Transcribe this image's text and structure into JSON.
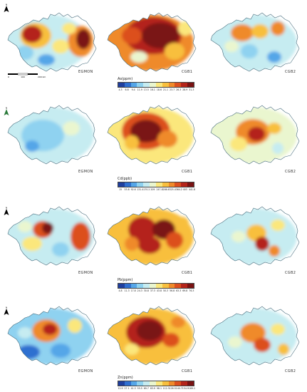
{
  "rows": [
    {
      "element": "As",
      "unit": "ppm",
      "legend_title": "As(ppm)",
      "ticks": [
        "4.3",
        "6.8",
        "9.4",
        "11.9",
        "13.5",
        "16.1",
        "18.6",
        "21.1",
        "23.7",
        "26.3",
        "28.9",
        "31.3"
      ],
      "maps": [
        {
          "label": "EGMON"
        },
        {
          "label": "CGB1"
        },
        {
          "label": "CGB2"
        }
      ]
    },
    {
      "element": "Cd",
      "unit": "ppb",
      "legend_title": "Cd(ppb)",
      "ticks": [
        "15",
        "53.8",
        "92.6",
        "131.4",
        "170.2",
        "209",
        "247.8",
        "286.6",
        "325.4",
        "364.2",
        "403",
        "441.8"
      ],
      "maps": [
        {
          "label": "EGMON"
        },
        {
          "label": "CGB1"
        },
        {
          "label": "CGB2"
        }
      ]
    },
    {
      "element": "Pb",
      "unit": "ppm",
      "legend_title": "Pb(ppm)",
      "ticks": [
        "4.8",
        "11.3",
        "17.8",
        "24.3",
        "30.8",
        "37.3",
        "43.8",
        "50.3",
        "56.8",
        "63.3",
        "69.8",
        "76.3"
      ],
      "maps": [
        {
          "label": "EGMON"
        },
        {
          "label": "CGB1"
        },
        {
          "label": "CGB2"
        }
      ]
    },
    {
      "element": "Zn",
      "unit": "ppm",
      "legend_title": "Zn(ppm)",
      "ticks": [
        "12.9",
        "27.1",
        "41.3",
        "55.5",
        "69.7",
        "83.9",
        "98.1",
        "112.3",
        "126.5",
        "140.7",
        "154.9",
        "169.1"
      ],
      "maps": [
        {
          "label": "EGMON"
        },
        {
          "label": "CGB1"
        },
        {
          "label": "CGB2"
        }
      ]
    }
  ],
  "colors": {
    "ramp": [
      "#1f3f9e",
      "#2f6fd0",
      "#55a6e8",
      "#8fd2f0",
      "#c6ecf1",
      "#eaf6cf",
      "#fbe77c",
      "#f8bf3e",
      "#ef8a2a",
      "#dc4f1e",
      "#b4241a",
      "#7a1212"
    ],
    "outline": "#4a6f7f"
  },
  "icons": {
    "north_arrow": "north-arrow-icon"
  },
  "north_label": "N",
  "scalebar_labels": [
    "0",
    "100",
    "200 km"
  ]
}
